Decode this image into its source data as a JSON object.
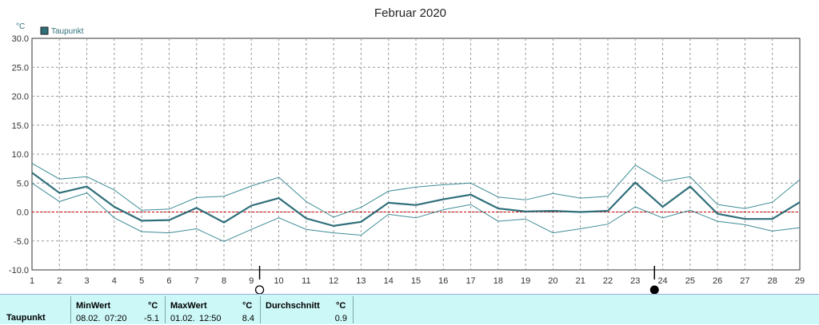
{
  "chart_data": {
    "type": "line",
    "title": "Februar 2020",
    "ylabel": "°C",
    "legend": "Taupunkt",
    "legend_placement": "top-left",
    "grid": true,
    "ylim": [
      -10,
      30
    ],
    "yticks": [
      "30.0",
      "25.0",
      "20.0",
      "15.0",
      "10.0",
      "5.0",
      "0.0",
      "-5.0",
      "-10.0"
    ],
    "x": [
      1,
      2,
      3,
      4,
      5,
      6,
      7,
      8,
      9,
      10,
      11,
      12,
      13,
      14,
      15,
      16,
      17,
      18,
      19,
      20,
      21,
      22,
      23,
      24,
      25,
      26,
      27,
      28,
      29
    ],
    "series": [
      {
        "name": "Taupunkt",
        "role": "mean",
        "values": [
          6.8,
          3.3,
          4.4,
          0.9,
          -1.5,
          -1.4,
          0.7,
          -1.8,
          1.1,
          2.4,
          -1.1,
          -2.4,
          -1.7,
          1.6,
          1.2,
          2.2,
          3.0,
          0.6,
          0.1,
          0.2,
          0.0,
          0.2,
          5.1,
          0.9,
          4.4,
          -0.3,
          -1.2,
          -1.2,
          1.7
        ]
      },
      {
        "role": "max",
        "values": [
          8.4,
          5.7,
          6.1,
          3.8,
          0.3,
          0.5,
          2.5,
          2.7,
          4.5,
          6.0,
          1.8,
          -0.9,
          0.8,
          3.6,
          4.3,
          4.7,
          5.0,
          2.6,
          2.1,
          3.2,
          2.4,
          2.7,
          8.1,
          5.3,
          6.1,
          1.3,
          0.6,
          1.7,
          5.6
        ]
      },
      {
        "role": "min",
        "values": [
          5.0,
          1.8,
          3.3,
          -1.0,
          -3.4,
          -3.6,
          -2.9,
          -5.1,
          -3.0,
          -1.0,
          -3.0,
          -3.6,
          -4.0,
          -0.4,
          -1.0,
          0.4,
          1.3,
          -1.6,
          -1.2,
          -3.6,
          -2.9,
          -2.1,
          0.9,
          -1.0,
          0.3,
          -1.6,
          -2.2,
          -3.3,
          -2.7
        ]
      }
    ],
    "moon_phases": [
      {
        "day": 9.3,
        "phase": "full-moon"
      },
      {
        "day": 23.7,
        "phase": "new-moon"
      }
    ],
    "colors": {
      "mean": "#2f6f7a",
      "band": "#3d8c96",
      "zero": "#cc0000",
      "grid": "#999999"
    }
  },
  "stats": {
    "row_label": "Taupunkt",
    "min": {
      "label": "MinWert",
      "unit": "°C",
      "date": "08.02.",
      "time": "07:20",
      "value": "-5.1"
    },
    "max": {
      "label": "MaxWert",
      "unit": "°C",
      "date": "01.02.",
      "time": "12:50",
      "value": "8.4"
    },
    "avg": {
      "label": "Durchschnitt",
      "unit": "°C",
      "value": "0.9"
    }
  }
}
